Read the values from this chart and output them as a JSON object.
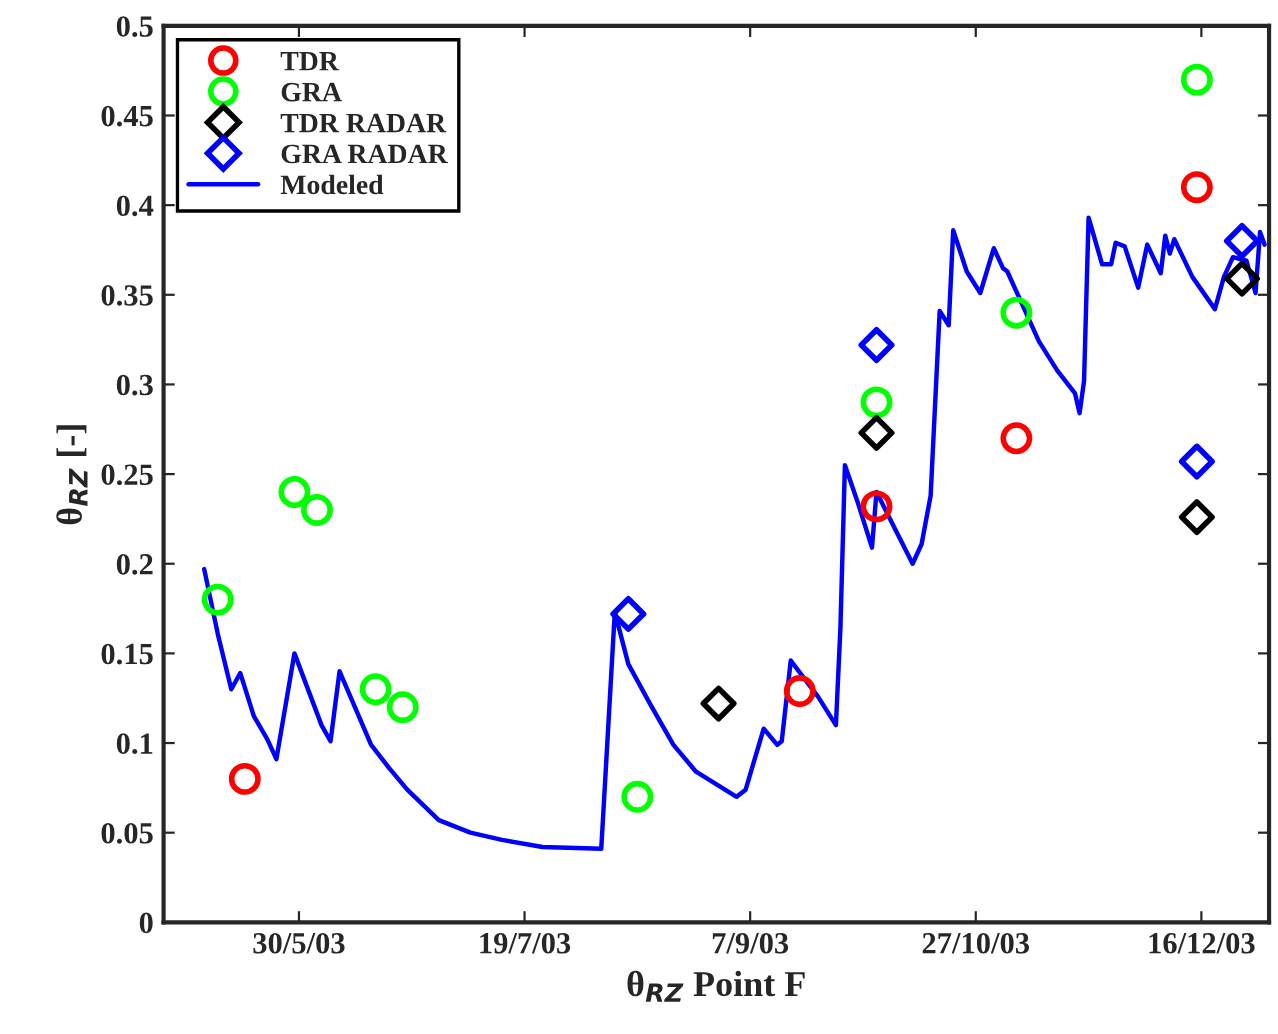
{
  "chart_data": {
    "type": "scatter",
    "xlabel": "θ$_{RZ}$ Point F",
    "ylabel": "θ$_{RZ}$ [-]",
    "xlim": [
      "2003-04-30",
      "2003-12-31"
    ],
    "xticks": [
      {
        "value": "2003-05-30",
        "label": "30/5/03"
      },
      {
        "value": "2003-07-19",
        "label": "19/7/03"
      },
      {
        "value": "2003-09-07",
        "label": "7/9/03"
      },
      {
        "value": "2003-10-27",
        "label": "27/10/03"
      },
      {
        "value": "2003-12-16",
        "label": "16/12/03"
      }
    ],
    "ylim": [
      0,
      0.5
    ],
    "yticks": [
      0,
      0.05,
      0.1,
      0.15,
      0.2,
      0.25,
      0.3,
      0.35,
      0.4,
      0.45,
      0.5
    ],
    "legend": "top left",
    "grid": false,
    "series": [
      {
        "name": "TDR",
        "marker": "circle",
        "color": "#ff0000",
        "x": [
          "2003-05-18",
          "2003-09-18",
          "2003-10-05",
          "2003-11-05",
          "2003-12-15"
        ],
        "values": [
          0.08,
          0.129,
          0.232,
          0.27,
          0.41
        ]
      },
      {
        "name": "GRA",
        "marker": "circle",
        "color": "#00ff00",
        "x": [
          "2003-05-12",
          "2003-05-29",
          "2003-06-03",
          "2003-06-16",
          "2003-06-22",
          "2003-08-13",
          "2003-10-05",
          "2003-11-05",
          "2003-12-15"
        ],
        "values": [
          0.18,
          0.24,
          0.23,
          0.13,
          0.12,
          0.07,
          0.29,
          0.34,
          0.47
        ]
      },
      {
        "name": "TDR RADAR",
        "marker": "diamond",
        "color": "#000000",
        "x": [
          "2003-08-31",
          "2003-10-05",
          "2003-12-15",
          "2003-12-25"
        ],
        "values": [
          0.122,
          0.273,
          0.226,
          0.359
        ]
      },
      {
        "name": "GRA RADAR",
        "marker": "diamond",
        "color": "#0000ff",
        "x": [
          "2003-08-11",
          "2003-10-05",
          "2003-12-15",
          "2003-12-25"
        ],
        "values": [
          0.172,
          0.322,
          0.257,
          0.38
        ]
      },
      {
        "name": "Modeled",
        "type": "line",
        "marker": "none",
        "line_style": "solid",
        "color": "#0000ff",
        "x": [
          "2003-05-09",
          "2003-05-12",
          "2003-05-15",
          "2003-05-17",
          "2003-05-20",
          "2003-05-23",
          "2003-05-25",
          "2003-05-29",
          "2003-06-04",
          "2003-06-06",
          "2003-06-08",
          "2003-06-15",
          "2003-06-19",
          "2003-06-23",
          "2003-06-30",
          "2003-07-07",
          "2003-07-14",
          "2003-07-23",
          "2003-08-05",
          "2003-08-08",
          "2003-08-11",
          "2003-08-16",
          "2003-08-21",
          "2003-08-26",
          "2003-09-04",
          "2003-09-06",
          "2003-09-10",
          "2003-09-13",
          "2003-09-14",
          "2003-09-16",
          "2003-09-22",
          "2003-09-26",
          "2003-09-27",
          "2003-09-28",
          "2003-10-01",
          "2003-10-04",
          "2003-10-05",
          "2003-10-09",
          "2003-10-13",
          "2003-10-15",
          "2003-10-17",
          "2003-10-19",
          "2003-10-21",
          "2003-10-22",
          "2003-10-25",
          "2003-10-28",
          "2003-10-31",
          "2003-11-02",
          "2003-11-03",
          "2003-11-10",
          "2003-11-14",
          "2003-11-18",
          "2003-11-19",
          "2003-11-20",
          "2003-11-21",
          "2003-11-24",
          "2003-11-26",
          "2003-11-27",
          "2003-11-29",
          "2003-12-02",
          "2003-12-04",
          "2003-12-07",
          "2003-12-08",
          "2003-12-09",
          "2003-12-10",
          "2003-12-14",
          "2003-12-19",
          "2003-12-21",
          "2003-12-23",
          "2003-12-26",
          "2003-12-28",
          "2003-12-29",
          "2003-12-30"
        ],
        "values": [
          0.197,
          0.161,
          0.13,
          0.139,
          0.115,
          0.102,
          0.091,
          0.15,
          0.11,
          0.101,
          0.14,
          0.099,
          0.086,
          0.074,
          0.057,
          0.05,
          0.046,
          0.042,
          0.041,
          0.173,
          0.144,
          0.121,
          0.099,
          0.084,
          0.07,
          0.074,
          0.108,
          0.099,
          0.101,
          0.146,
          0.126,
          0.11,
          0.164,
          0.255,
          0.233,
          0.209,
          0.24,
          0.22,
          0.2,
          0.211,
          0.238,
          0.341,
          0.333,
          0.386,
          0.363,
          0.351,
          0.376,
          0.365,
          0.363,
          0.324,
          0.308,
          0.295,
          0.284,
          0.302,
          0.393,
          0.367,
          0.367,
          0.379,
          0.377,
          0.354,
          0.378,
          0.362,
          0.383,
          0.373,
          0.381,
          0.36,
          0.342,
          0.36,
          0.371,
          0.369,
          0.351,
          0.385,
          0.378
        ]
      }
    ]
  }
}
